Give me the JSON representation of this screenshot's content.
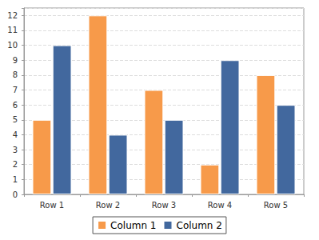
{
  "chart_data": {
    "type": "bar",
    "categories": [
      "Row 1",
      "Row 2",
      "Row 3",
      "Row 4",
      "Row 5"
    ],
    "series": [
      {
        "name": "Column 1",
        "color": "#f79a4a",
        "values": [
          5,
          12,
          7,
          2,
          8
        ]
      },
      {
        "name": "Column 2",
        "color": "#42689e",
        "values": [
          10,
          4,
          5,
          9,
          6
        ]
      }
    ],
    "ylim": [
      0,
      12.5
    ],
    "yticks": [
      0,
      1,
      2,
      3,
      4,
      5,
      6,
      7,
      8,
      9,
      10,
      11,
      12
    ],
    "grid": true,
    "legend": "bottom"
  }
}
